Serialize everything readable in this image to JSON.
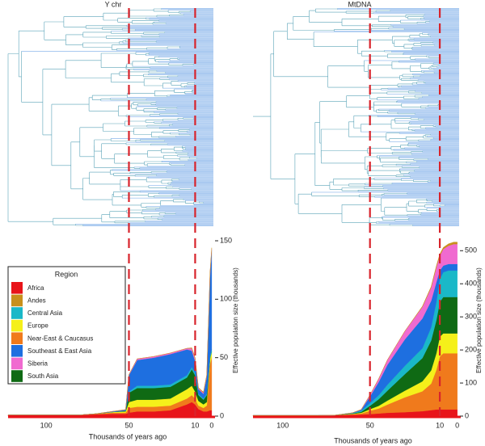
{
  "chart_data": [
    {
      "type": "stacked-area",
      "title": "Y chr",
      "x_label": "Thousands of years ago",
      "y_label": "Effective population size (thousands)",
      "legend_title": "Region",
      "legend": "lower left",
      "xlim": [
        123,
        -2
      ],
      "xticks": [
        100,
        50,
        10,
        0
      ],
      "ylim": [
        0,
        150
      ],
      "yticks": [
        0,
        50,
        100,
        150
      ],
      "x": [
        123,
        80,
        70,
        60,
        52,
        50,
        45,
        35,
        25,
        15,
        12,
        10,
        8,
        5,
        3,
        1,
        0
      ],
      "series": [
        {
          "name": "Africa",
          "color": "#e8141a",
          "values": [
            1,
            1,
            1.5,
            2,
            2,
            3,
            4,
            4,
            5,
            10,
            12,
            10,
            6,
            4,
            4,
            5,
            5
          ]
        },
        {
          "name": "Andes",
          "color": "#c8901c",
          "values": [
            0,
            0,
            0,
            0,
            0,
            0,
            0,
            0,
            0,
            0,
            0.5,
            1,
            0.5,
            0.5,
            0.5,
            1,
            1
          ]
        },
        {
          "name": "Central Asia",
          "color": "#1ab8c8",
          "values": [
            0,
            0,
            0,
            0,
            0,
            1,
            2,
            2,
            2,
            2,
            2,
            2,
            1,
            1,
            1,
            2,
            2
          ]
        },
        {
          "name": "Europe",
          "color": "#f5f01a",
          "values": [
            0,
            0,
            0,
            0.5,
            1,
            5,
            6,
            6,
            6,
            8,
            8,
            6,
            4,
            3,
            3,
            5,
            5
          ]
        },
        {
          "name": "Near-East & Caucasus",
          "color": "#f07a1c",
          "values": [
            0,
            0,
            0.5,
            1,
            1,
            4,
            4,
            4,
            4,
            5,
            6,
            5,
            3,
            3,
            5,
            40,
            45
          ]
        },
        {
          "name": "Southeast & East Asia",
          "color": "#1e6fe0",
          "values": [
            0,
            0,
            0,
            0.5,
            1,
            14,
            22,
            24,
            26,
            22,
            14,
            10,
            4,
            4,
            15,
            70,
            85
          ]
        },
        {
          "name": "Siberia",
          "color": "#f06ad0",
          "values": [
            0,
            0,
            0,
            0,
            0,
            0.5,
            1,
            1,
            1,
            1,
            2,
            2,
            1,
            1,
            1,
            1,
            1
          ]
        },
        {
          "name": "South Asia",
          "color": "#0f6a14",
          "values": [
            0,
            0,
            0,
            0,
            0.5,
            8,
            10,
            10,
            10,
            10,
            14,
            14,
            5,
            4,
            6,
            0,
            0
          ]
        }
      ]
    },
    {
      "type": "stacked-area",
      "title": "MtDNA",
      "x_label": "Thousands of years ago",
      "y_label": "Effective population size (thousands)",
      "xlim": [
        117,
        -2
      ],
      "xticks": [
        100,
        50,
        10,
        0
      ],
      "ylim": [
        0,
        530
      ],
      "yticks": [
        0,
        100,
        200,
        300,
        400,
        500
      ],
      "x": [
        117,
        80,
        70,
        60,
        55,
        50,
        45,
        40,
        30,
        20,
        15,
        12,
        10,
        8,
        5,
        2,
        0
      ],
      "series": [
        {
          "name": "Africa",
          "color": "#e8141a",
          "values": [
            2,
            2,
            3,
            4,
            5,
            6,
            8,
            10,
            12,
            15,
            18,
            20,
            20,
            20,
            20,
            20,
            20
          ]
        },
        {
          "name": "Andes",
          "color": "#c8901c",
          "values": [
            0,
            0,
            0,
            0,
            0,
            0,
            0,
            0,
            0,
            2,
            3,
            4,
            5,
            5,
            6,
            6,
            6
          ]
        },
        {
          "name": "Central Asia",
          "color": "#1ab8c8",
          "values": [
            0,
            0,
            0,
            1,
            3,
            8,
            12,
            18,
            25,
            30,
            40,
            55,
            70,
            75,
            80,
            80,
            80
          ]
        },
        {
          "name": "Europe",
          "color": "#f5f01a",
          "values": [
            0,
            0,
            0,
            1,
            2,
            5,
            8,
            12,
            20,
            30,
            40,
            50,
            60,
            60,
            60,
            60,
            60
          ]
        },
        {
          "name": "Near-East & Caucasus",
          "color": "#f07a1c",
          "values": [
            0,
            0,
            0,
            2,
            3,
            10,
            15,
            25,
            45,
            60,
            80,
            120,
            160,
            170,
            170,
            170,
            170
          ]
        },
        {
          "name": "Southeast & East Asia",
          "color": "#1e6fe0",
          "values": [
            0,
            0,
            0,
            1,
            3,
            20,
            40,
            60,
            80,
            90,
            80,
            60,
            25,
            20,
            20,
            20,
            20
          ]
        },
        {
          "name": "Siberia",
          "color": "#f06ad0",
          "values": [
            0,
            0,
            0,
            0,
            1,
            5,
            10,
            15,
            25,
            35,
            40,
            45,
            45,
            50,
            55,
            60,
            60
          ]
        },
        {
          "name": "South Asia",
          "color": "#0f6a14",
          "values": [
            0,
            0,
            0,
            1,
            3,
            10,
            20,
            30,
            50,
            70,
            90,
            100,
            105,
            110,
            110,
            110,
            110
          ]
        }
      ]
    }
  ]
}
